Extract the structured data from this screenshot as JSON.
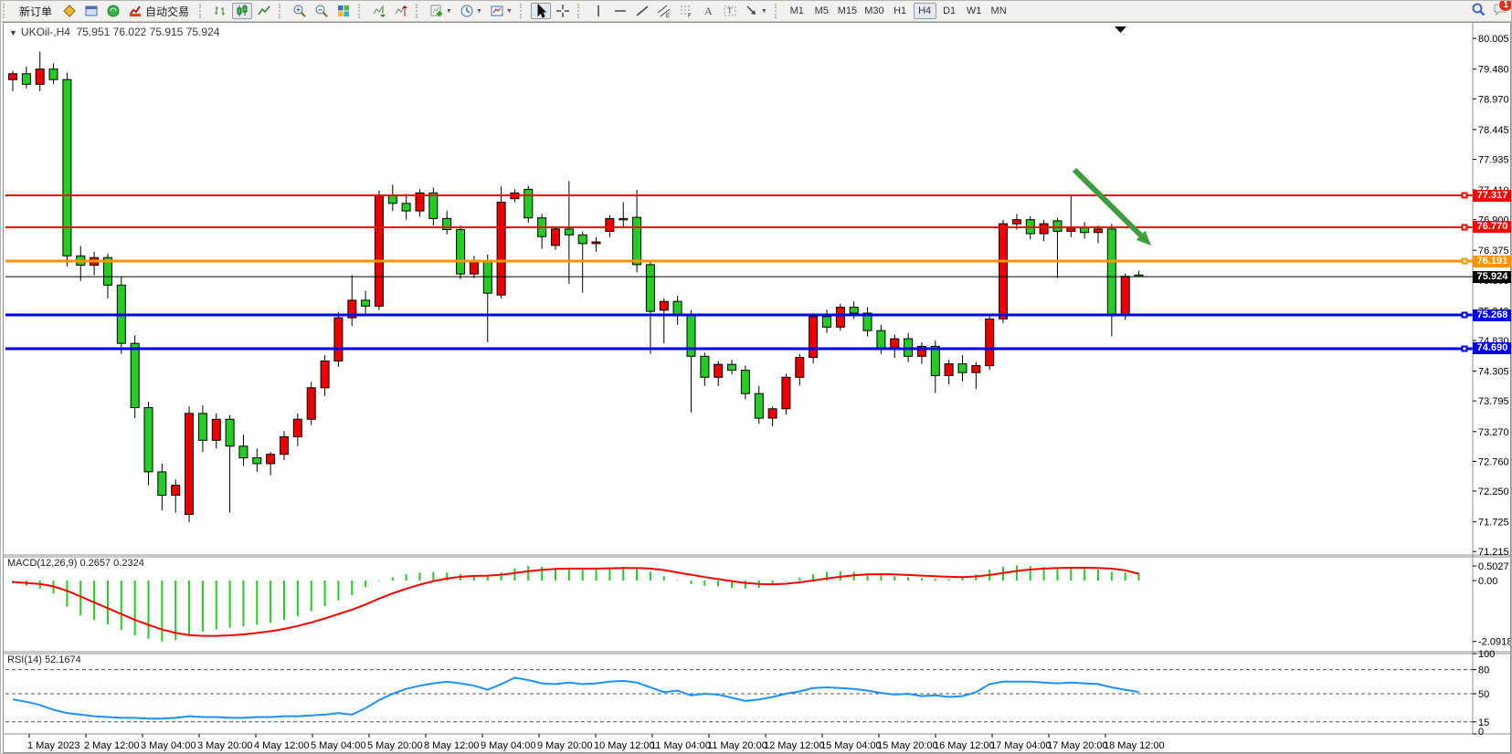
{
  "toolbar": {
    "new_order": "新订单",
    "auto_trading": "自动交易",
    "groups": [
      {
        "items": [
          {
            "name": "new-order-button",
            "label_key": "new_order"
          },
          {
            "name": "charts-profile-icon"
          },
          {
            "name": "terminal-window-icon"
          },
          {
            "name": "signal-icon"
          },
          {
            "name": "autotrade-icon",
            "label_key": "auto_trading"
          }
        ]
      },
      {
        "items": [
          {
            "name": "bar-chart-icon"
          },
          {
            "name": "candlestick-icon",
            "active": true
          },
          {
            "name": "line-chart-icon"
          }
        ]
      },
      {
        "items": [
          {
            "name": "zoom-in-icon"
          },
          {
            "name": "zoom-out-icon"
          },
          {
            "name": "tile-windows-icon"
          }
        ]
      },
      {
        "items": [
          {
            "name": "auto-scroll-icon"
          },
          {
            "name": "chart-shift-icon"
          }
        ]
      },
      {
        "items": [
          {
            "name": "new-chart-icon",
            "dd": true
          },
          {
            "name": "period-icon",
            "dd": true
          },
          {
            "name": "template-icon",
            "dd": true
          }
        ]
      },
      {
        "items": [
          {
            "name": "cursor-icon",
            "active": true
          },
          {
            "name": "crosshair-icon"
          }
        ]
      },
      {
        "items": [
          {
            "name": "vertical-line-icon"
          },
          {
            "name": "horizontal-line-icon"
          },
          {
            "name": "trendline-icon"
          },
          {
            "name": "equidistant-channel-icon"
          },
          {
            "name": "fibonacci-icon"
          },
          {
            "name": "text-icon"
          },
          {
            "name": "text-label-icon"
          },
          {
            "name": "arrows-icon",
            "dd": true
          }
        ]
      }
    ],
    "timeframes": [
      "M1",
      "M5",
      "M15",
      "M30",
      "H1",
      "H4",
      "D1",
      "W1",
      "MN"
    ],
    "active_timeframe": "H4",
    "right_icons": [
      "search-icon",
      "chat-icon"
    ],
    "notification_badge": "1"
  },
  "chart": {
    "collapse_marker": "▼",
    "title": "UKOil-,H4",
    "ohlc_text": "75.951 76.022 75.915 75.924",
    "macd_label": "MACD(12,26,9) 0.2657 0.2324",
    "rsi_label": "RSI(14) 52.1674"
  },
  "chart_data": [
    {
      "type": "candlestick",
      "symbol": "UKOil-",
      "timeframe": "H4",
      "title": "UKOil-,H4  75.951 76.022 75.915 75.924",
      "last_ohlc": {
        "open": 75.951,
        "high": 76.022,
        "low": 75.915,
        "close": 75.924
      },
      "up_color": "#ED0000",
      "down_color": "#24CC24",
      "y_axis_ticks": [
        80.005,
        79.48,
        78.97,
        78.445,
        77.935,
        77.41,
        76.9,
        76.375,
        75.86,
        75.34,
        74.83,
        74.305,
        73.795,
        73.27,
        72.76,
        72.25,
        71.725,
        71.215
      ],
      "x_axis_labels": [
        "1 May 2023",
        "2 May 12:00",
        "3 May 04:00",
        "3 May 20:00",
        "4 May 12:00",
        "5 May 04:00",
        "5 May 20:00",
        "8 May 12:00",
        "9 May 04:00",
        "9 May 20:00",
        "10 May 12:00",
        "11 May 04:00",
        "11 May 20:00",
        "12 May 12:00",
        "15 May 04:00",
        "15 May 20:00",
        "16 May 12:00",
        "17 May 04:00",
        "17 May 20:00",
        "18 May 12:00"
      ],
      "price_range": {
        "top": 80.273,
        "bottom": 71.155
      },
      "hlines": [
        {
          "price": "77.317",
          "value": 77.317,
          "color": "#FF0000",
          "width": 2
        },
        {
          "price": "76.770",
          "value": 76.77,
          "color": "#FF0000",
          "width": 2
        },
        {
          "price": "76.191",
          "value": 76.191,
          "color": "#FF9500",
          "width": 3
        },
        {
          "price": "75.924",
          "value": 75.924,
          "color": "#000000",
          "width": 1
        },
        {
          "price": "75.268",
          "value": 75.268,
          "color": "#0000EE",
          "width": 3
        },
        {
          "price": "74.690",
          "value": 74.69,
          "color": "#0000EE",
          "width": 3
        }
      ],
      "annotation_arrow": {
        "from": [
          1172,
          183
        ],
        "to": [
          1256,
          266
        ],
        "color": "#3E9E3E"
      },
      "candles": [
        [
          79.3,
          79.45,
          79.1,
          79.4
        ],
        [
          79.4,
          79.52,
          79.15,
          79.22
        ],
        [
          79.22,
          79.78,
          79.1,
          79.48
        ],
        [
          79.48,
          79.58,
          79.22,
          79.3
        ],
        [
          79.3,
          79.42,
          76.1,
          76.28
        ],
        [
          76.28,
          76.45,
          75.85,
          76.12
        ],
        [
          76.12,
          76.35,
          75.95,
          76.25
        ],
        [
          76.25,
          76.32,
          75.55,
          75.78
        ],
        [
          75.78,
          75.92,
          74.6,
          74.78
        ],
        [
          74.78,
          74.92,
          73.5,
          73.68
        ],
        [
          73.68,
          73.78,
          72.35,
          72.58
        ],
        [
          72.58,
          72.72,
          71.92,
          72.18
        ],
        [
          72.18,
          72.45,
          71.88,
          72.35
        ],
        [
          71.85,
          73.7,
          71.72,
          73.58
        ],
        [
          73.58,
          73.72,
          72.92,
          73.12
        ],
        [
          73.12,
          73.58,
          72.98,
          73.48
        ],
        [
          73.48,
          73.55,
          71.88,
          73.02
        ],
        [
          73.02,
          73.22,
          72.68,
          72.82
        ],
        [
          72.82,
          72.98,
          72.58,
          72.72
        ],
        [
          72.72,
          72.92,
          72.52,
          72.88
        ],
        [
          72.88,
          73.28,
          72.78,
          73.18
        ],
        [
          73.18,
          73.58,
          73.02,
          73.48
        ],
        [
          73.48,
          74.12,
          73.38,
          74.02
        ],
        [
          74.02,
          74.58,
          73.88,
          74.48
        ],
        [
          74.48,
          75.32,
          74.38,
          75.22
        ],
        [
          75.22,
          75.95,
          75.08,
          75.52
        ],
        [
          75.52,
          75.68,
          75.28,
          75.42
        ],
        [
          75.42,
          77.4,
          75.35,
          77.32
        ],
        [
          77.32,
          77.5,
          77.05,
          77.18
        ],
        [
          77.18,
          77.34,
          76.9,
          77.05
        ],
        [
          77.05,
          77.42,
          76.95,
          77.36
        ],
        [
          77.36,
          77.45,
          76.8,
          76.92
        ],
        [
          76.92,
          77.05,
          76.65,
          76.73
        ],
        [
          76.73,
          76.8,
          75.88,
          75.97
        ],
        [
          75.97,
          76.28,
          75.9,
          76.2
        ],
        [
          76.2,
          76.3,
          74.8,
          75.64
        ],
        [
          75.61,
          77.47,
          75.55,
          77.2
        ],
        [
          77.26,
          77.42,
          77.2,
          77.36
        ],
        [
          77.42,
          77.48,
          76.85,
          76.93
        ],
        [
          76.93,
          77.0,
          76.4,
          76.61
        ],
        [
          76.46,
          76.78,
          76.38,
          76.74
        ],
        [
          76.74,
          77.56,
          75.8,
          76.64
        ],
        [
          76.64,
          76.7,
          75.65,
          76.49
        ],
        [
          76.49,
          76.6,
          76.35,
          76.52
        ],
        [
          76.7,
          76.98,
          76.6,
          76.92
        ],
        [
          76.92,
          77.2,
          76.75,
          76.9
        ],
        [
          76.94,
          77.41,
          76.0,
          76.13
        ],
        [
          76.13,
          76.2,
          74.6,
          75.33
        ],
        [
          75.35,
          75.55,
          74.78,
          75.5
        ],
        [
          75.5,
          75.6,
          75.1,
          75.28
        ],
        [
          75.27,
          75.35,
          73.6,
          74.56
        ],
        [
          74.56,
          74.62,
          74.05,
          74.2
        ],
        [
          74.2,
          74.48,
          74.05,
          74.42
        ],
        [
          74.42,
          74.5,
          74.25,
          74.32
        ],
        [
          74.32,
          74.4,
          73.82,
          73.92
        ],
        [
          73.92,
          74.05,
          73.4,
          73.5
        ],
        [
          73.5,
          73.7,
          73.36,
          73.66
        ],
        [
          73.66,
          74.26,
          73.56,
          74.2
        ],
        [
          74.2,
          74.6,
          74.06,
          74.54
        ],
        [
          74.54,
          75.3,
          74.44,
          75.24
        ],
        [
          75.24,
          75.36,
          74.96,
          75.06
        ],
        [
          75.06,
          75.46,
          75.0,
          75.4
        ],
        [
          75.4,
          75.5,
          75.2,
          75.3
        ],
        [
          75.3,
          75.4,
          74.9,
          75.0
        ],
        [
          75.0,
          75.1,
          74.6,
          74.7
        ],
        [
          74.7,
          74.93,
          74.53,
          74.86
        ],
        [
          74.86,
          74.96,
          74.46,
          74.56
        ],
        [
          74.56,
          74.8,
          74.43,
          74.73
        ],
        [
          74.73,
          74.83,
          73.93,
          74.23
        ],
        [
          74.23,
          74.5,
          74.08,
          74.43
        ],
        [
          74.43,
          74.58,
          74.13,
          74.28
        ],
        [
          74.28,
          74.46,
          74.0,
          74.4
        ],
        [
          74.4,
          75.26,
          74.33,
          75.2
        ],
        [
          75.2,
          76.9,
          75.13,
          76.83
        ],
        [
          76.83,
          77.0,
          76.73,
          76.9
        ],
        [
          76.9,
          76.96,
          76.56,
          76.66
        ],
        [
          76.66,
          76.9,
          76.53,
          76.83
        ],
        [
          76.88,
          76.93,
          75.9,
          76.7
        ],
        [
          76.7,
          77.33,
          76.6,
          76.76
        ],
        [
          76.76,
          76.86,
          76.58,
          76.68
        ],
        [
          76.68,
          76.8,
          76.5,
          76.74
        ],
        [
          76.74,
          76.83,
          74.9,
          75.26
        ],
        [
          75.26,
          75.98,
          75.18,
          75.93
        ],
        [
          75.951,
          76.022,
          75.915,
          75.924
        ]
      ]
    },
    {
      "type": "bar",
      "name": "MACD",
      "label": "MACD(12,26,9) 0.2657 0.2324",
      "current_macd": 0.2657,
      "current_signal": 0.2324,
      "hist_color": "#24CC24",
      "signal_color": "#FF0000",
      "y_ticks": [
        "0.5027",
        "0.00",
        "-2.0918"
      ],
      "y_tick_values": [
        0.5027,
        0.0,
        -2.0918
      ],
      "values": [
        -0.1,
        -0.18,
        -0.28,
        -0.45,
        -0.9,
        -1.2,
        -1.35,
        -1.5,
        -1.7,
        -1.88,
        -2.0,
        -2.09,
        -2.05,
        -1.85,
        -1.75,
        -1.68,
        -1.62,
        -1.58,
        -1.52,
        -1.45,
        -1.35,
        -1.22,
        -1.05,
        -0.88,
        -0.68,
        -0.5,
        -0.22,
        -0.02,
        0.12,
        0.22,
        0.28,
        0.3,
        0.28,
        0.22,
        0.18,
        0.15,
        0.28,
        0.42,
        0.5,
        0.48,
        0.44,
        0.42,
        0.4,
        0.42,
        0.45,
        0.47,
        0.42,
        0.3,
        0.15,
        0.02,
        -0.12,
        -0.18,
        -0.2,
        -0.25,
        -0.28,
        -0.25,
        -0.15,
        -0.02,
        0.1,
        0.22,
        0.3,
        0.32,
        0.3,
        0.25,
        0.2,
        0.15,
        0.12,
        0.08,
        0.06,
        0.05,
        0.1,
        0.22,
        0.38,
        0.48,
        0.52,
        0.5,
        0.47,
        0.44,
        0.42,
        0.4,
        0.38,
        0.3,
        0.28,
        0.2657
      ],
      "signal": [
        -0.05,
        -0.08,
        -0.12,
        -0.2,
        -0.35,
        -0.55,
        -0.75,
        -0.95,
        -1.15,
        -1.35,
        -1.52,
        -1.68,
        -1.8,
        -1.87,
        -1.9,
        -1.9,
        -1.88,
        -1.85,
        -1.8,
        -1.74,
        -1.66,
        -1.56,
        -1.44,
        -1.3,
        -1.15,
        -1.0,
        -0.82,
        -0.62,
        -0.44,
        -0.28,
        -0.14,
        -0.02,
        0.07,
        0.13,
        0.16,
        0.17,
        0.2,
        0.26,
        0.32,
        0.37,
        0.4,
        0.41,
        0.41,
        0.41,
        0.42,
        0.43,
        0.43,
        0.41,
        0.36,
        0.28,
        0.2,
        0.12,
        0.05,
        -0.02,
        -0.08,
        -0.12,
        -0.13,
        -0.11,
        -0.06,
        0.0,
        0.07,
        0.13,
        0.18,
        0.21,
        0.22,
        0.21,
        0.19,
        0.17,
        0.15,
        0.13,
        0.12,
        0.14,
        0.19,
        0.26,
        0.33,
        0.38,
        0.41,
        0.43,
        0.44,
        0.44,
        0.43,
        0.41,
        0.35,
        0.2324
      ]
    },
    {
      "type": "line",
      "name": "RSI",
      "label": "RSI(14) 52.1674",
      "current": 52.1674,
      "line_color": "#1E90FF",
      "range": [
        0,
        100
      ],
      "y_ticks": [
        "100",
        "80",
        "50",
        "15",
        "0"
      ],
      "y_tick_values": [
        100,
        80,
        50,
        15,
        0
      ],
      "levels": [
        80,
        50,
        15
      ],
      "values": [
        43,
        40,
        36,
        30,
        26,
        24,
        22,
        21,
        20,
        20,
        19,
        19,
        20,
        22,
        21,
        21,
        20,
        20,
        21,
        21,
        22,
        22,
        23,
        24,
        26,
        24,
        32,
        42,
        50,
        56,
        60,
        63,
        65,
        63,
        60,
        55,
        62,
        70,
        67,
        63,
        62,
        64,
        62,
        63,
        65,
        66,
        64,
        58,
        52,
        54,
        48,
        50,
        49,
        45,
        41,
        43,
        46,
        50,
        53,
        57,
        58,
        57,
        56,
        54,
        51,
        49,
        50,
        47,
        48,
        46,
        47,
        52,
        62,
        65,
        65,
        65,
        64,
        63,
        64,
        63,
        62,
        58,
        55,
        52.17
      ]
    }
  ]
}
